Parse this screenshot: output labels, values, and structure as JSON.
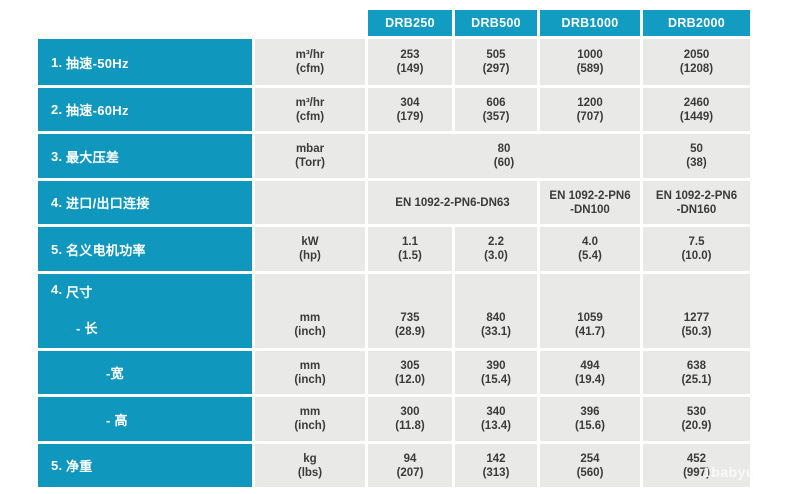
{
  "table": {
    "products": [
      "DRB250",
      "DRB500",
      "DRB1000",
      "DRB2000"
    ],
    "rows": [
      {
        "num": "1.",
        "label": "抽速-50Hz",
        "unit": "m³/hr\n(cfm)",
        "cells": [
          "253\n(149)",
          "505\n(297)",
          "1000\n(589)",
          "2050\n(1208)"
        ]
      },
      {
        "num": "2.",
        "label": "抽速-60Hz",
        "unit": "m³/hr\n(cfm)",
        "cells": [
          "304\n(179)",
          "606\n(357)",
          "1200\n(707)",
          "2460\n(1449)"
        ]
      },
      {
        "num": "3.",
        "label": "最大压差",
        "unit": "mbar\n(Torr)",
        "span_cell": "80\n(60)",
        "last_cell": "50\n(38)"
      },
      {
        "num": "4.",
        "label": "进口/出口连接",
        "unit": "",
        "span_cell": "EN 1092-2-PN6-DN63",
        "cell3": "EN 1092-2-PN6\n-DN100",
        "cell4": "EN 1092-2-PN6\n-DN160"
      },
      {
        "num": "5.",
        "label": "名义电机功率",
        "unit": "kW\n(hp)",
        "cells": [
          "1.1\n(1.5)",
          "2.2\n(3.0)",
          "4.0\n(5.4)",
          "7.5\n(10.0)"
        ]
      },
      {
        "num": "4.",
        "label": "尺寸",
        "sublabel": "- 长",
        "unit": "mm\n(inch)",
        "cells": [
          "735\n(28.9)",
          "840\n(33.1)",
          "1059\n(41.7)",
          "1277\n(50.3)"
        ]
      },
      {
        "num": "",
        "label": "-宽",
        "unit": "mm\n(inch)",
        "cells": [
          "305\n(12.0)",
          "390\n(15.4)",
          "494\n(19.4)",
          "638\n(25.1)"
        ]
      },
      {
        "num": "",
        "label": "- 高",
        "unit": "mm\n(inch)",
        "cells": [
          "300\n(11.8)",
          "340\n(13.4)",
          "396\n(15.6)",
          "530\n(20.9)"
        ]
      },
      {
        "num": "5.",
        "label": "净重",
        "unit": "kg\n(lbs)",
        "cells": [
          "94\n(207)",
          "142\n(313)",
          "254\n(560)",
          "452\n(997)"
        ]
      }
    ]
  },
  "colors": {
    "accent_cyan": "#0F97BD",
    "header_cyan": "#129CC2",
    "cell_gray": "#E9E9E7",
    "cell_text": "#3B3B3B"
  },
  "watermark": "1babyu"
}
